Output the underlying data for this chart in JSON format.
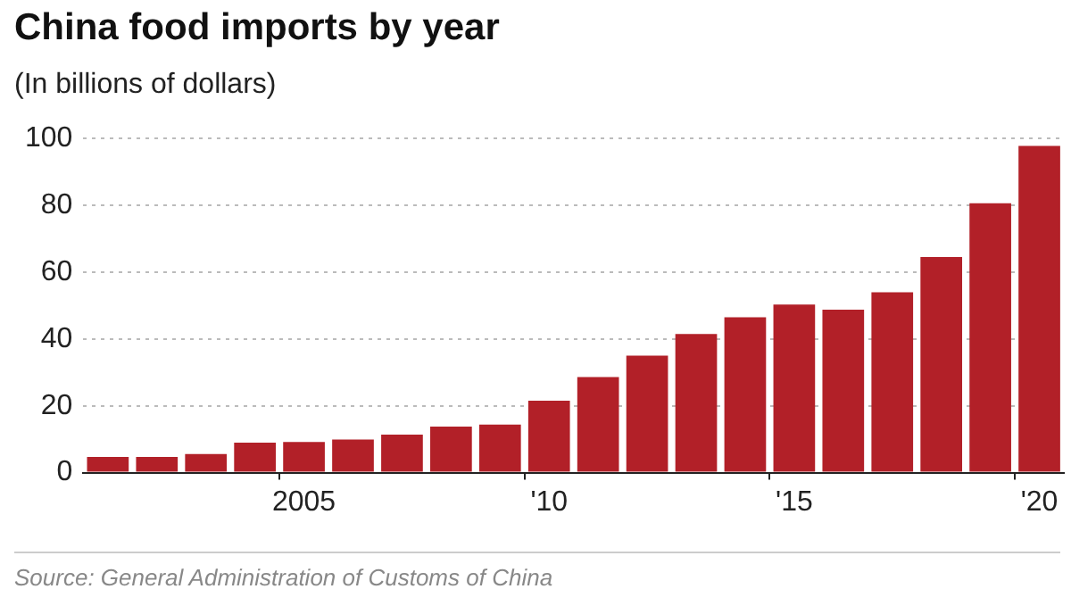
{
  "chart_data": {
    "type": "bar",
    "title": "China food imports by year",
    "subtitle": "(In billions of dollars)",
    "categories": [
      null,
      null,
      null,
      null,
      "2005",
      null,
      null,
      null,
      null,
      "'10",
      null,
      null,
      null,
      null,
      "'15",
      null,
      null,
      null,
      null,
      "'20"
    ],
    "values": [
      4.7,
      4.7,
      5.6,
      9,
      9.2,
      9.9,
      11.4,
      13.8,
      14.4,
      21.5,
      28.6,
      35,
      41.5,
      46.5,
      50.3,
      48.8,
      54,
      64.5,
      80.6,
      97.8
    ],
    "color": "#b22028",
    "ylim": [
      0,
      100
    ],
    "yticks": [
      0,
      20,
      40,
      60,
      80,
      100
    ],
    "grid": "y",
    "annotations": [
      "Source: General Administration of Customs of China"
    ]
  }
}
